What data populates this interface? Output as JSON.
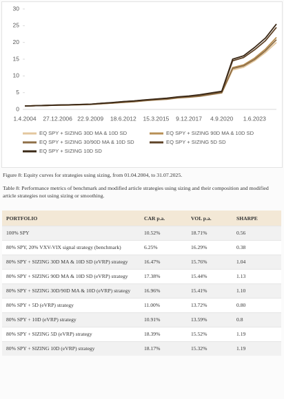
{
  "chart_data": {
    "type": "line",
    "categories": [
      "1.4.2004",
      null,
      null,
      "27.12.2006",
      null,
      null,
      "22.9.2009",
      null,
      null,
      "18.6.2012",
      null,
      null,
      "15.3.2015",
      null,
      null,
      "9.12.2017",
      null,
      null,
      "4.9.2020",
      null,
      null,
      "1.6.2023",
      null,
      null
    ],
    "ylim": [
      0,
      30
    ],
    "yticks": [
      0,
      5,
      10,
      15,
      20,
      25,
      30
    ],
    "grid": false,
    "series": [
      {
        "name": "EQ SPY + SIZING 30D MA & 10D SD",
        "color": "#e3c79e",
        "values": [
          1,
          1.1,
          1.15,
          1.25,
          1.3,
          1.35,
          1.45,
          1.65,
          1.85,
          2.1,
          2.3,
          2.6,
          2.8,
          3.0,
          3.4,
          3.6,
          3.9,
          4.4,
          4.9,
          11.8,
          12.6,
          14.5,
          17,
          20
        ]
      },
      {
        "name": "EQ SPY + SIZING 90D MA & 10D SD",
        "color": "#b78f55",
        "values": [
          1,
          1.1,
          1.2,
          1.25,
          1.3,
          1.4,
          1.5,
          1.7,
          1.9,
          2.15,
          2.35,
          2.65,
          2.9,
          3.1,
          3.5,
          3.7,
          4.0,
          4.5,
          5.0,
          12.5,
          13.3,
          15.3,
          18,
          21.5
        ]
      },
      {
        "name": "EQ SPY + SIZING 30/90D MA & 10D SD",
        "color": "#8f6f47",
        "values": [
          1,
          1.1,
          1.15,
          1.25,
          1.3,
          1.4,
          1.5,
          1.7,
          1.9,
          2.1,
          2.3,
          2.6,
          2.85,
          3.05,
          3.45,
          3.65,
          3.95,
          4.45,
          4.95,
          12.2,
          13,
          14.9,
          17.5,
          20.8
        ]
      },
      {
        "name": "EQ SPY + SIZING 5D SD",
        "color": "#5e4226",
        "values": [
          1,
          1.1,
          1.2,
          1.3,
          1.35,
          1.45,
          1.55,
          1.8,
          2.0,
          2.3,
          2.5,
          2.8,
          3.05,
          3.3,
          3.7,
          3.9,
          4.3,
          4.8,
          5.3,
          14.5,
          15.5,
          17.8,
          20.5,
          24.5
        ]
      },
      {
        "name": "EQ SPY + SIZING 10D SD",
        "color": "#3a2816",
        "values": [
          1,
          1.1,
          1.2,
          1.3,
          1.35,
          1.45,
          1.55,
          1.8,
          2.05,
          2.35,
          2.55,
          2.85,
          3.1,
          3.35,
          3.75,
          4.0,
          4.4,
          4.9,
          5.4,
          15,
          16,
          18.5,
          21.3,
          25.5
        ]
      }
    ]
  },
  "figure_caption": "Figure 8: Equity curves for strategies using sizing, from 01.04.2004, to 31.07.2025.",
  "table_caption": "Table 8: Performance metrics of benchmark and modified article strategies using sizing and their composition and modified article strategies not using sizing or smoothing.",
  "table": {
    "header": [
      "PORTFOLIO",
      "CAR p.a.",
      "VOL p.a.",
      "SHARPE"
    ],
    "rows": [
      [
        "100% SPY",
        "10.52%",
        "18.71%",
        "0.56"
      ],
      [
        "80% SPY, 20% VXV-VIX signal strategy (benchmark)",
        "6.25%",
        "16.29%",
        "0.38"
      ],
      [
        "80% SPY + SIZING 30D MA & 10D SD (eVRP) strategy",
        "16.47%",
        "15.76%",
        "1.04"
      ],
      [
        "80% SPY + SIZING 90D MA & 10D SD (eVRP) strategy",
        "17.38%",
        "15.44%",
        "1.13"
      ],
      [
        "80% SPY + SIZING 30D/90D MA & 10D (eVRP) strategy",
        "16.96%",
        "15.41%",
        "1.10"
      ],
      [
        "80% SPY + 5D (eVRP) strategy",
        "11.00%",
        "13.72%",
        "0.80"
      ],
      [
        "80% SPY + 10D (eVRP) strategy",
        "10.91%",
        "13.59%",
        "0.8"
      ],
      [
        "80% SPY + SIZING 5D (eVRP) strategy",
        "18.39%",
        "15.52%",
        "1.19"
      ],
      [
        "80% SPY + SIZING 10D (eVRP) strategy",
        "18.17%",
        "15.32%",
        "1.19"
      ]
    ]
  }
}
